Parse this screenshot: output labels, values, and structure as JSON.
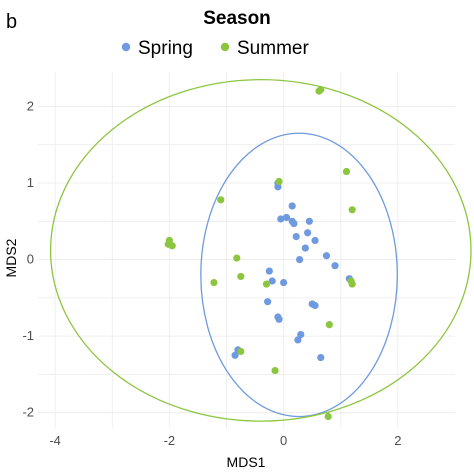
{
  "panel_label": "b",
  "chart_data": {
    "type": "scatter",
    "legend_title": "Season",
    "legend_position": "top",
    "xlabel": "MDS1",
    "ylabel": "MDS2",
    "xlim": [
      -4.3,
      3.0
    ],
    "ylim": [
      -2.2,
      2.45
    ],
    "x_ticks": [
      -4,
      -2,
      0,
      2
    ],
    "y_ticks": [
      -2,
      -1,
      0,
      1,
      2
    ],
    "grid": true,
    "series": [
      {
        "name": "Spring",
        "color": "#6f9ae0",
        "ellipse": {
          "cx": 0.27,
          "cy": -0.2,
          "rx": 1.72,
          "ry": 1.85
        },
        "points": [
          [
            -0.1,
            1.0
          ],
          [
            -0.1,
            0.95
          ],
          [
            0.15,
            0.7
          ],
          [
            0.05,
            0.55
          ],
          [
            -0.05,
            0.53
          ],
          [
            0.15,
            0.5
          ],
          [
            0.18,
            0.47
          ],
          [
            0.45,
            0.5
          ],
          [
            0.42,
            0.35
          ],
          [
            0.22,
            0.3
          ],
          [
            0.38,
            0.15
          ],
          [
            0.55,
            0.25
          ],
          [
            0.75,
            0.05
          ],
          [
            0.28,
            0.0
          ],
          [
            0.9,
            -0.08
          ],
          [
            1.15,
            -0.25
          ],
          [
            -0.25,
            -0.15
          ],
          [
            -0.2,
            -0.28
          ],
          [
            0.0,
            -0.3
          ],
          [
            -0.28,
            -0.55
          ],
          [
            0.5,
            -0.58
          ],
          [
            0.55,
            -0.6
          ],
          [
            -0.1,
            -0.75
          ],
          [
            -0.08,
            -0.78
          ],
          [
            0.3,
            -0.98
          ],
          [
            0.25,
            -1.05
          ],
          [
            0.65,
            -1.28
          ],
          [
            -0.8,
            -1.18
          ],
          [
            -0.85,
            -1.25
          ]
        ]
      },
      {
        "name": "Summer",
        "color": "#8cc63f",
        "ellipse": {
          "cx": -0.4,
          "cy": 0.12,
          "rx": 3.68,
          "ry": 2.23
        },
        "points": [
          [
            0.65,
            2.22
          ],
          [
            0.62,
            2.2
          ],
          [
            -2.0,
            0.25
          ],
          [
            -1.95,
            0.18
          ],
          [
            -2.02,
            0.2
          ],
          [
            -1.1,
            0.78
          ],
          [
            -0.08,
            1.02
          ],
          [
            1.1,
            1.15
          ],
          [
            1.2,
            0.65
          ],
          [
            -0.82,
            0.02
          ],
          [
            -1.22,
            -0.3
          ],
          [
            -0.75,
            -0.22
          ],
          [
            -0.3,
            -0.32
          ],
          [
            1.18,
            -0.28
          ],
          [
            1.2,
            -0.32
          ],
          [
            0.8,
            -0.85
          ],
          [
            -0.75,
            -1.2
          ],
          [
            -0.15,
            -1.45
          ],
          [
            0.78,
            -2.05
          ]
        ]
      }
    ]
  }
}
